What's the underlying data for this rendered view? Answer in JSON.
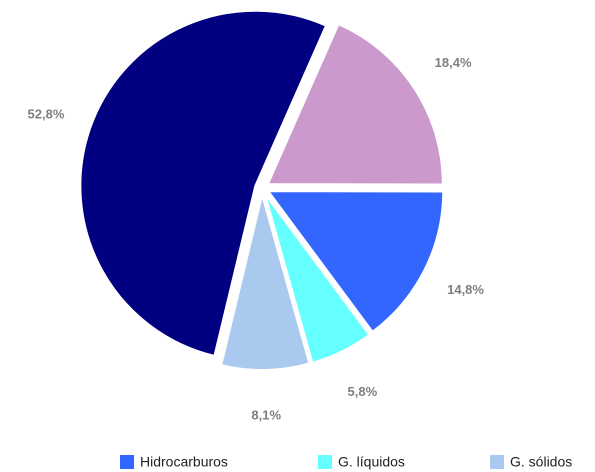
{
  "chart_data": {
    "type": "pie",
    "categories": [
      null,
      "Hidrocarburos",
      "G. líquidos",
      "G. sólidos",
      null
    ],
    "values": [
      18.4,
      14.8,
      5.8,
      8.1,
      52.8
    ],
    "value_labels": [
      "18,4%",
      "14,8%",
      "5,8%",
      "8,1%",
      "52,8%"
    ],
    "colors": [
      "#cc99cc",
      "#3366ff",
      "#66ffff",
      "#a9c9ef",
      "#000080"
    ],
    "legend": "bottom"
  }
}
